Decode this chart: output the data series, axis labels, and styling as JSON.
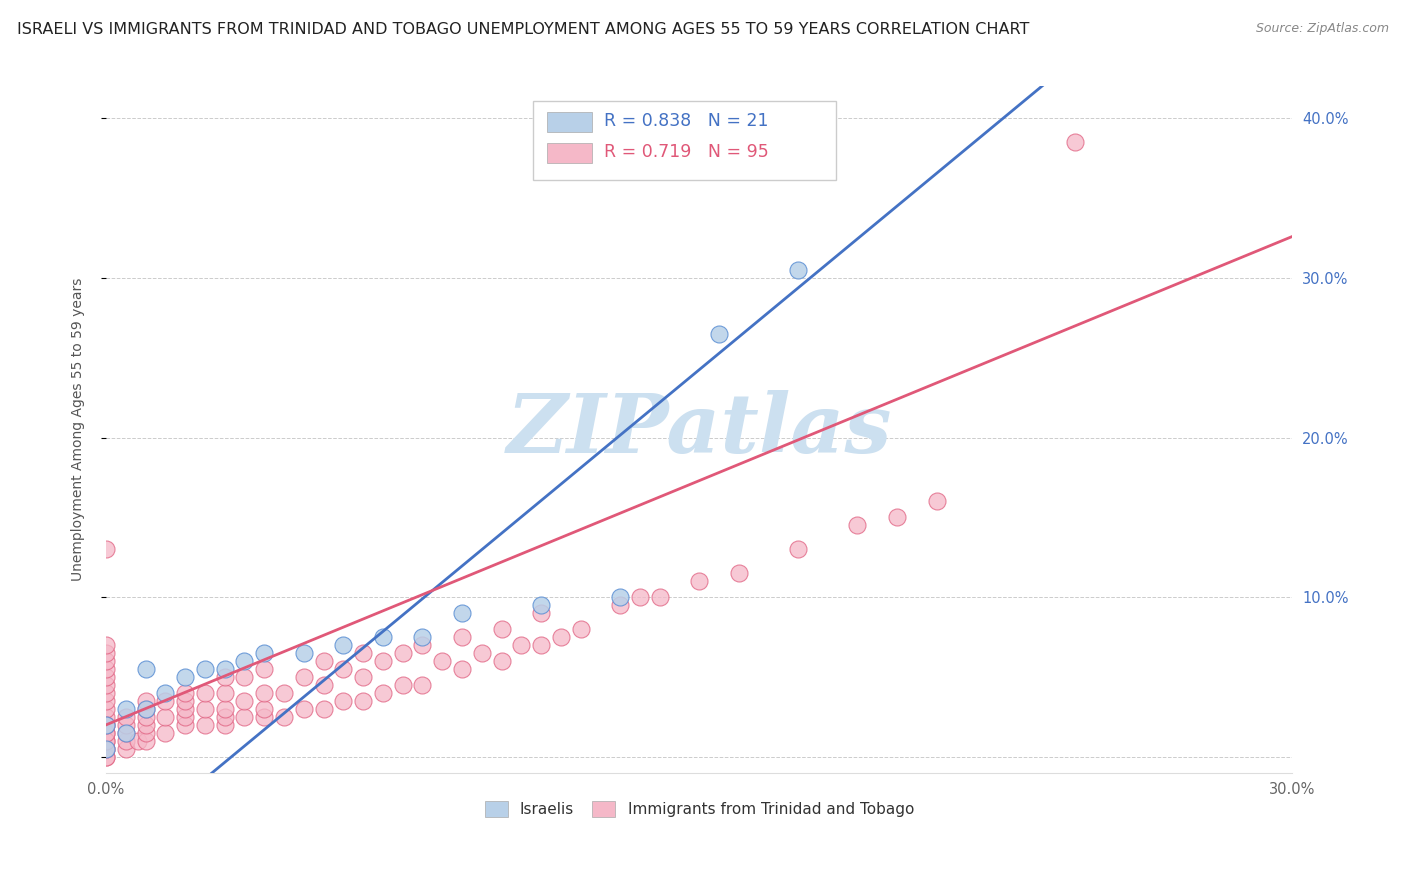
{
  "title": "ISRAELI VS IMMIGRANTS FROM TRINIDAD AND TOBAGO UNEMPLOYMENT AMONG AGES 55 TO 59 YEARS CORRELATION CHART",
  "source": "Source: ZipAtlas.com",
  "ylabel": "Unemployment Among Ages 55 to 59 years",
  "xlim": [
    0.0,
    0.3
  ],
  "ylim": [
    -0.01,
    0.42
  ],
  "xticks": [
    0.0,
    0.05,
    0.1,
    0.15,
    0.2,
    0.25,
    0.3
  ],
  "xtick_labels": [
    "0.0%",
    "",
    "",
    "",
    "",
    "",
    "30.0%"
  ],
  "yticks": [
    0.0,
    0.1,
    0.2,
    0.3,
    0.4
  ],
  "ytick_labels": [
    "",
    "10.0%",
    "20.0%",
    "30.0%",
    "40.0%"
  ],
  "israeli_R": 0.838,
  "israeli_N": 21,
  "trinidad_R": 0.719,
  "trinidad_N": 95,
  "israeli_fill_color": "#b8d0e8",
  "trinidad_fill_color": "#f5b8c8",
  "israeli_edge_color": "#5b8fd4",
  "trinidad_edge_color": "#e06080",
  "israeli_line_color": "#4472C4",
  "trinidad_line_color": "#e05878",
  "label_color": "#4472C4",
  "watermark": "ZIPatlas",
  "watermark_color": "#cce0f0",
  "background_color": "#ffffff",
  "grid_color": "#cccccc",
  "title_fontsize": 11.5,
  "label_fontsize": 10,
  "tick_fontsize": 10.5,
  "israeli_line_slope": 2.05,
  "israeli_line_intercept": -0.065,
  "trinidad_line_slope": 1.02,
  "trinidad_line_intercept": 0.02,
  "israeli_x": [
    0.0,
    0.0,
    0.005,
    0.005,
    0.01,
    0.01,
    0.015,
    0.02,
    0.025,
    0.03,
    0.035,
    0.04,
    0.05,
    0.06,
    0.07,
    0.08,
    0.09,
    0.11,
    0.13,
    0.155,
    0.175
  ],
  "israeli_y": [
    0.005,
    0.02,
    0.015,
    0.03,
    0.03,
    0.055,
    0.04,
    0.05,
    0.055,
    0.055,
    0.06,
    0.065,
    0.065,
    0.07,
    0.075,
    0.075,
    0.09,
    0.095,
    0.1,
    0.265,
    0.305
  ],
  "trinidad_x": [
    0.0,
    0.0,
    0.0,
    0.0,
    0.0,
    0.0,
    0.0,
    0.0,
    0.0,
    0.0,
    0.0,
    0.0,
    0.0,
    0.0,
    0.0,
    0.0,
    0.0,
    0.0,
    0.0,
    0.0,
    0.005,
    0.005,
    0.005,
    0.005,
    0.005,
    0.008,
    0.01,
    0.01,
    0.01,
    0.01,
    0.01,
    0.01,
    0.015,
    0.015,
    0.015,
    0.02,
    0.02,
    0.02,
    0.02,
    0.02,
    0.025,
    0.025,
    0.025,
    0.03,
    0.03,
    0.03,
    0.03,
    0.03,
    0.035,
    0.035,
    0.035,
    0.04,
    0.04,
    0.04,
    0.04,
    0.045,
    0.045,
    0.05,
    0.05,
    0.055,
    0.055,
    0.055,
    0.06,
    0.06,
    0.065,
    0.065,
    0.065,
    0.07,
    0.07,
    0.075,
    0.075,
    0.08,
    0.08,
    0.085,
    0.09,
    0.09,
    0.095,
    0.1,
    0.1,
    0.105,
    0.11,
    0.11,
    0.115,
    0.12,
    0.13,
    0.135,
    0.14,
    0.15,
    0.16,
    0.175,
    0.19,
    0.2,
    0.21,
    0.245,
    0.0
  ],
  "trinidad_y": [
    0.0,
    0.005,
    0.01,
    0.015,
    0.02,
    0.025,
    0.03,
    0.035,
    0.04,
    0.045,
    0.05,
    0.055,
    0.06,
    0.065,
    0.07,
    0.0,
    0.005,
    0.01,
    0.015,
    0.02,
    0.005,
    0.01,
    0.015,
    0.02,
    0.025,
    0.01,
    0.01,
    0.015,
    0.02,
    0.025,
    0.03,
    0.035,
    0.015,
    0.025,
    0.035,
    0.02,
    0.025,
    0.03,
    0.035,
    0.04,
    0.02,
    0.03,
    0.04,
    0.02,
    0.025,
    0.03,
    0.04,
    0.05,
    0.025,
    0.035,
    0.05,
    0.025,
    0.03,
    0.04,
    0.055,
    0.025,
    0.04,
    0.03,
    0.05,
    0.03,
    0.045,
    0.06,
    0.035,
    0.055,
    0.035,
    0.05,
    0.065,
    0.04,
    0.06,
    0.045,
    0.065,
    0.045,
    0.07,
    0.06,
    0.055,
    0.075,
    0.065,
    0.06,
    0.08,
    0.07,
    0.07,
    0.09,
    0.075,
    0.08,
    0.095,
    0.1,
    0.1,
    0.11,
    0.115,
    0.13,
    0.145,
    0.15,
    0.16,
    0.385,
    0.13
  ]
}
